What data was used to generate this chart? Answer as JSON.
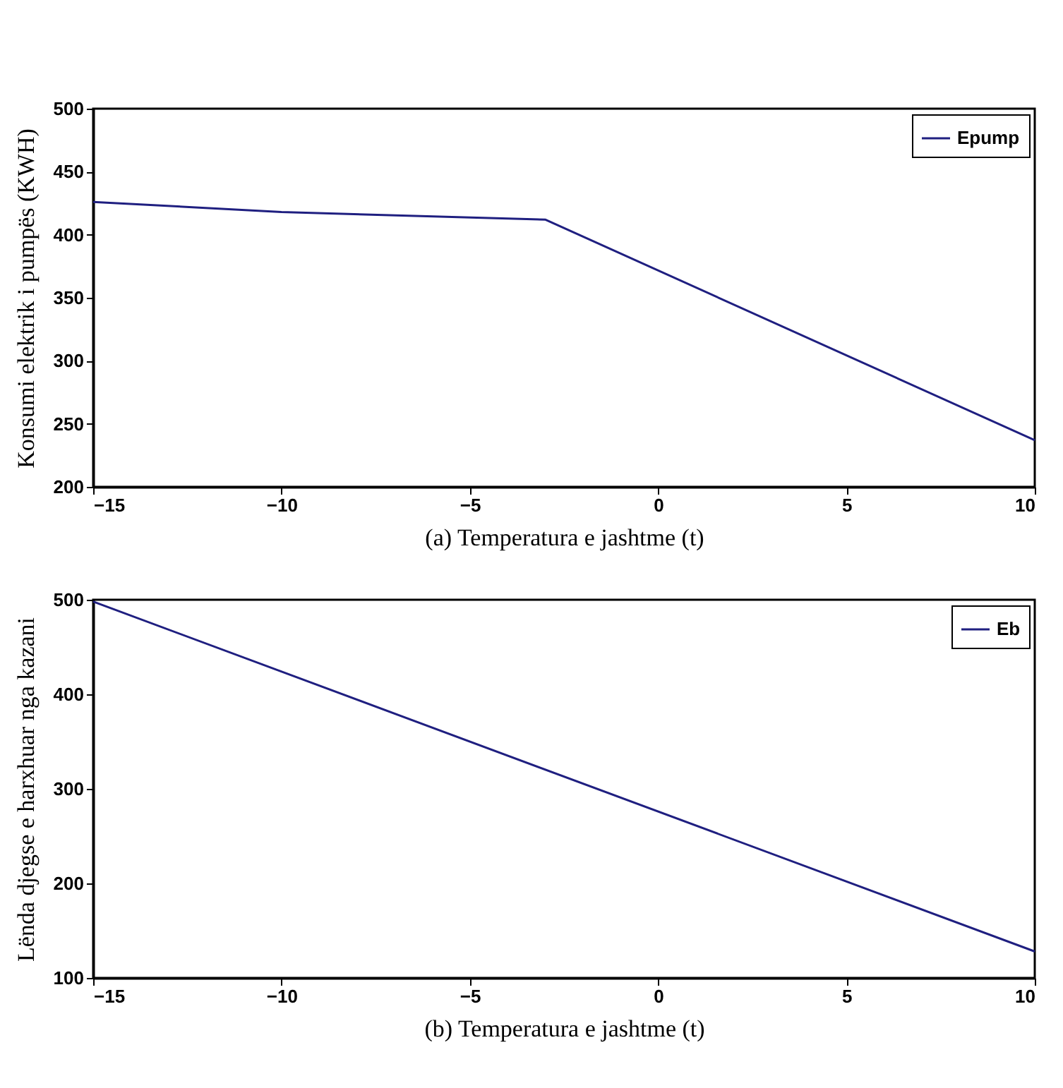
{
  "chart_data": [
    {
      "type": "line",
      "xlabel": "(a) Temperatura e jashtme (t)",
      "ylabel": "Konsumi elektrik i pumpës (KWH)",
      "x": [
        -15,
        -10,
        -3,
        10
      ],
      "series": [
        {
          "name": "Epump",
          "color": "#1f1f80",
          "values": [
            426,
            418,
            412,
            237
          ]
        }
      ],
      "xlim": [
        -15,
        10
      ],
      "xticks": [
        -15,
        -10,
        -5,
        0,
        5,
        10
      ],
      "ylim": [
        200,
        500
      ],
      "yticks": [
        200,
        250,
        300,
        350,
        400,
        450,
        500
      ],
      "grid": false,
      "legend": "top right"
    },
    {
      "type": "line",
      "xlabel": "(b) Temperatura e jashtme (t)",
      "ylabel": "Lënda djegse e harxhuar nga kazani",
      "x": [
        -15,
        10
      ],
      "series": [
        {
          "name": "Eb",
          "color": "#1f1f80",
          "values": [
            498,
            128
          ]
        }
      ],
      "xlim": [
        -15,
        10
      ],
      "xticks": [
        -15,
        -10,
        -5,
        0,
        5,
        10
      ],
      "ylim": [
        100,
        500
      ],
      "yticks": [
        100,
        200,
        300,
        400,
        500
      ],
      "grid": false,
      "legend": "top right"
    }
  ]
}
